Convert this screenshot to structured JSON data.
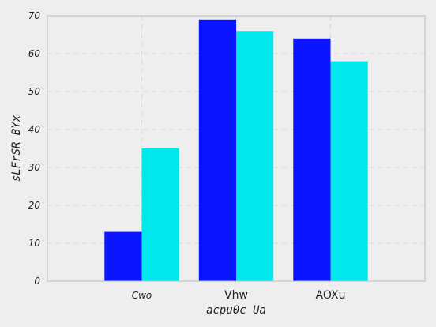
{
  "chart_data": {
    "type": "bar",
    "title": "",
    "xlabel": "acpu0c Ua",
    "ylabel": "sLFrSR BYx",
    "categories": [
      "Cwo",
      "Vhw",
      "AOXu"
    ],
    "series": [
      {
        "values": [
          13,
          69,
          64
        ],
        "color": "#0a14ff"
      },
      {
        "values": [
          35,
          66,
          58
        ],
        "color": "#00e8ec"
      }
    ],
    "ylim": [
      0,
      70
    ],
    "yticks": [
      "0",
      "10",
      "20",
      "30",
      "40",
      "50",
      "60",
      "70"
    ],
    "grid": true,
    "legend": "none"
  },
  "colors": {
    "background": "#eeeeee",
    "axes_face": "#eeeeee",
    "axes_edge": "#bcbcbc",
    "grid": "#d8d8d8"
  }
}
